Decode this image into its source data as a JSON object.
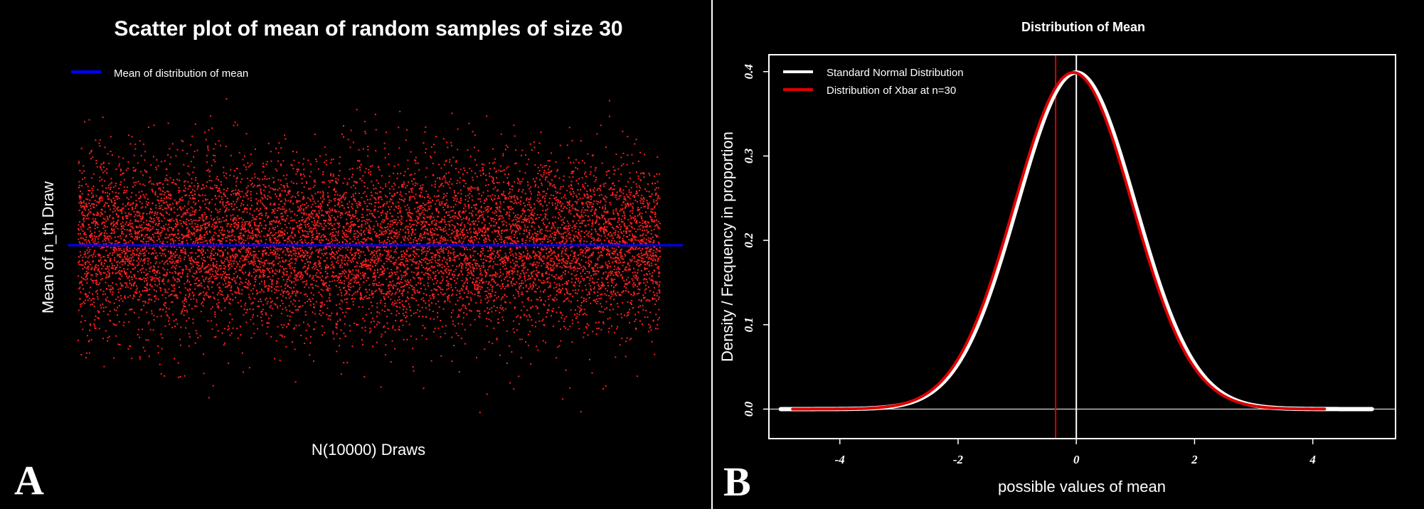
{
  "chart_data": [
    {
      "panel_label": "A",
      "type": "scatter",
      "title": "Scatter plot of mean of random samples of size 30",
      "xlabel": "N(10000) Draws",
      "ylabel": "Mean of n_th Draw",
      "n_points": 10000,
      "point_color": "#ff2020",
      "x_range": [
        1,
        10000
      ],
      "y_distribution": {
        "mean": 0,
        "sd": 1
      },
      "ylim": [
        -4.5,
        4.5
      ],
      "axes_shown": false,
      "grid": false,
      "reference_lines": [
        {
          "name": "Mean of distribution of mean",
          "orientation": "horizontal",
          "y": 0,
          "color": "#0000ff"
        }
      ],
      "legend": {
        "placement": "top-left",
        "entries": [
          {
            "label": "Mean of distribution of mean",
            "color": "#0000ff"
          }
        ]
      }
    },
    {
      "panel_label": "B",
      "type": "line",
      "title": "Distribution of Mean",
      "xlabel": "possible values of mean",
      "ylabel": "Density / Frequency in proportion",
      "xlim": [
        -5.2,
        5.4
      ],
      "ylim": [
        -0.035,
        0.42
      ],
      "x_ticks": [
        {
          "value": -4,
          "label": "-4"
        },
        {
          "value": -2,
          "label": "-2"
        },
        {
          "value": 0,
          "label": "0"
        },
        {
          "value": 2,
          "label": "2"
        },
        {
          "value": 4,
          "label": "4"
        }
      ],
      "y_ticks": [
        {
          "value": 0.0,
          "label": "0.0"
        },
        {
          "value": 0.1,
          "label": "0.1"
        },
        {
          "value": 0.2,
          "label": "0.2"
        },
        {
          "value": 0.3,
          "label": "0.3"
        },
        {
          "value": 0.4,
          "label": "0.4"
        }
      ],
      "grid": false,
      "series": [
        {
          "name": "Standard Normal Distribution",
          "color": "#ffffff",
          "x_start": -5,
          "x_end": 5,
          "mean": 0,
          "sd": 1
        },
        {
          "name": "Distribution of Xbar at n=30",
          "color": "#dd0000",
          "x_start": -4.8,
          "x_end": 4.2,
          "mean": -0.05,
          "sd": 1.0
        }
      ],
      "reference_lines": [
        {
          "orientation": "vertical",
          "x": 0,
          "color": "#ffffff"
        },
        {
          "orientation": "vertical",
          "x": -0.35,
          "color": "#dd0000"
        },
        {
          "orientation": "horizontal",
          "y": 0,
          "color": "#bbbbbb"
        }
      ],
      "legend": {
        "placement": "top-left",
        "entries": [
          {
            "label": "Standard Normal Distribution",
            "color": "#ffffff"
          },
          {
            "label": "Distribution of Xbar at n=30",
            "color": "#dd0000"
          }
        ]
      }
    }
  ]
}
